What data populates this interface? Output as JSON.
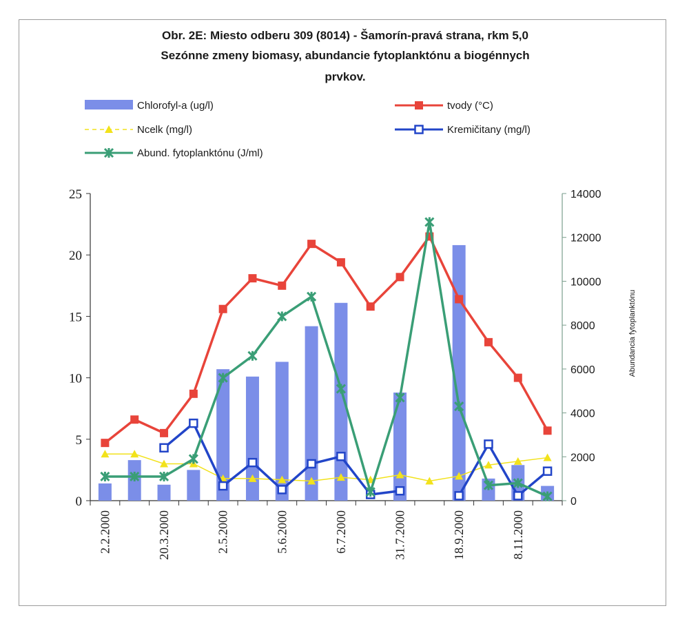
{
  "chart_data": {
    "type": "bar+line",
    "title": [
      "Obr. 2E:  Miesto odberu 309 (8014) - Šamorín-pravá strana, rkm 5,0",
      "Sezónne zmeny biomasy, abundancie fytoplanktónu a biogénnych",
      "prvkov."
    ],
    "x_labels": [
      "2.2.2000",
      "20.3.2000",
      "2.5.2000",
      "5.6.2000",
      "6.7.2000",
      "31.7.2000",
      "18.9.2000",
      "8.11.2000"
    ],
    "primary_axis": {
      "ylim": [
        0,
        25
      ],
      "ticks": [
        "0",
        "5",
        "10",
        "15",
        "20",
        "25"
      ]
    },
    "secondary_axis": {
      "label": "Abundancia fytoplanktónu",
      "ylim": [
        0,
        14000
      ],
      "ticks": [
        "0",
        "2000",
        "4000",
        "6000",
        "8000",
        "10000",
        "12000",
        "14000"
      ]
    },
    "legend_position": "top",
    "series": [
      {
        "name": "Chlorofyl-a (ug/l)",
        "type": "bar",
        "axis": "left",
        "color": "#7b8ee8",
        "values": [
          1.4,
          3.3,
          1.3,
          2.5,
          10.7,
          10.1,
          11.3,
          14.2,
          16.1,
          null,
          8.8,
          null,
          20.8,
          1.8,
          2.9,
          1.2
        ]
      },
      {
        "name": "tvody (°C)",
        "type": "line",
        "axis": "left",
        "color": "#e8443a",
        "marker": "square",
        "values": [
          4.7,
          6.6,
          5.5,
          8.7,
          15.6,
          18.1,
          17.5,
          20.9,
          19.4,
          15.8,
          18.2,
          21.5,
          16.4,
          12.9,
          10.0,
          5.7
        ]
      },
      {
        "name": "Ncelk (mg/l)",
        "type": "line",
        "axis": "left",
        "color": "#f2e21b",
        "marker": "triangle",
        "dashed": true,
        "values": [
          3.8,
          3.8,
          3.0,
          3.0,
          1.8,
          1.8,
          1.7,
          1.6,
          1.9,
          1.7,
          2.1,
          1.6,
          2.0,
          2.9,
          3.2,
          3.5
        ]
      },
      {
        "name": "Kremičitany (mg/l)",
        "type": "line",
        "axis": "left",
        "color": "#2245c8",
        "marker": "open-square",
        "values": [
          null,
          null,
          4.3,
          6.3,
          1.2,
          3.1,
          0.9,
          3.0,
          3.6,
          0.5,
          0.8,
          null,
          0.4,
          4.6,
          0.4,
          2.4
        ]
      },
      {
        "name": "Abund. fytoplanktónu (J/ml)",
        "type": "line",
        "axis": "right",
        "color": "#3a9e76",
        "marker": "asterisk",
        "values": [
          1100,
          1100,
          1100,
          1900,
          5600,
          6600,
          8400,
          9300,
          5100,
          400,
          4700,
          12700,
          4300,
          700,
          800,
          200
        ]
      }
    ]
  }
}
